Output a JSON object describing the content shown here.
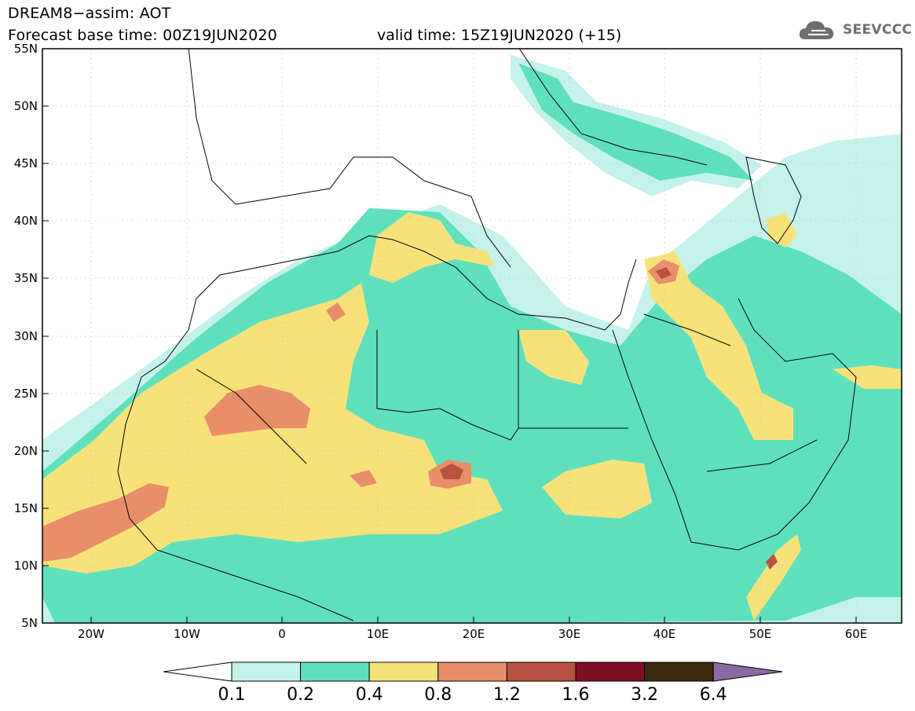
{
  "header": {
    "model_line": "DREAM8−assim: AOT",
    "base_time": "Forecast base time: 00Z19JUN2020",
    "valid_time": "valid time: 15Z19JUN2020 (+15)",
    "logo_text": "SEEVCCC"
  },
  "axes": {
    "lat_labels": [
      "55N",
      "50N",
      "45N",
      "40N",
      "35N",
      "30N",
      "25N",
      "20N",
      "15N",
      "10N",
      "5N"
    ],
    "lon_labels": [
      "20W",
      "10W",
      "0",
      "10E",
      "20E",
      "30E",
      "40E",
      "50E",
      "60E"
    ]
  },
  "colorbar": {
    "levels": [
      "0.1",
      "0.2",
      "0.4",
      "0.8",
      "1.2",
      "1.6",
      "3.2",
      "6.4"
    ],
    "colors": [
      "#ffffff",
      "#c4f2ea",
      "#5fe0bd",
      "#f7e27a",
      "#e88e6b",
      "#b6523f",
      "#7f0e23",
      "#3e2812",
      "#8a6aa6"
    ]
  }
}
